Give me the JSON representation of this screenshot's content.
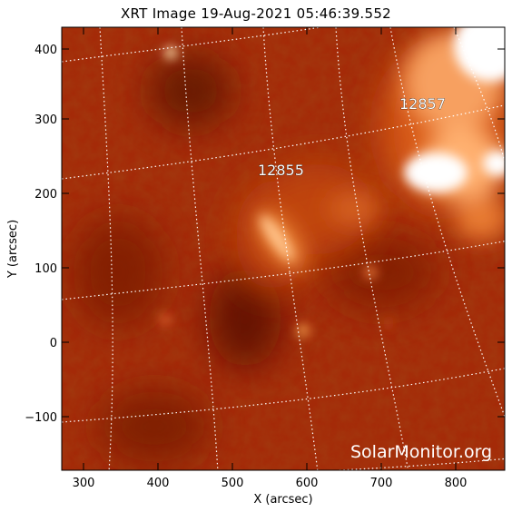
{
  "title": "XRT Image 19-Aug-2021 05:46:39.552",
  "axes": {
    "xlabel": "X (arcsec)",
    "ylabel": "Y (arcsec)",
    "x_ticks": [
      "300",
      "400",
      "500",
      "600",
      "700",
      "800"
    ],
    "y_ticks": [
      "400",
      "300",
      "200",
      "100",
      "0",
      "−100"
    ]
  },
  "regions": [
    {
      "number": "12857"
    },
    {
      "number": "12855"
    }
  ],
  "credit": "SolarMonitor.org",
  "colors": {
    "background_solar": "#a42a08",
    "dark_region": "#6e1604",
    "bright_region": "#ff9a3a",
    "saturated": "#ffffff",
    "grid": "#ffffff"
  }
}
